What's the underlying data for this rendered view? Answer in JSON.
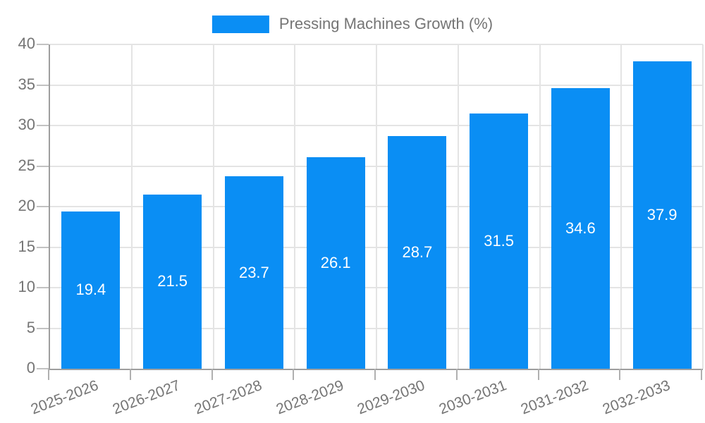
{
  "legend": {
    "label": "Pressing Machines Growth (%)"
  },
  "colors": {
    "bar": "#0a8ef4",
    "data_label": "#ffffff",
    "axis_text": "#757575",
    "gridline": "#e4e4e4",
    "axis_line": "#9e9e9e"
  },
  "chart_data": {
    "type": "bar",
    "title": "",
    "series_name": "Pressing Machines Growth (%)",
    "categories": [
      "2025-2026",
      "2026-2027",
      "2027-2028",
      "2028-2029",
      "2029-2030",
      "2030-2031",
      "2031-2032",
      "2032-2033"
    ],
    "values": [
      19.4,
      21.5,
      23.7,
      26.1,
      28.7,
      31.5,
      34.6,
      37.9
    ],
    "data_labels": [
      "19.4",
      "21.5",
      "23.7",
      "26.1",
      "28.7",
      "31.5",
      "34.6",
      "37.9"
    ],
    "xlabel": "",
    "ylabel": "",
    "ylim": [
      0,
      40
    ],
    "yticks": [
      0,
      5,
      10,
      15,
      20,
      25,
      30,
      35,
      40
    ],
    "grid": true,
    "legend_position": "top-center",
    "x_tick_rotation_deg": -21
  }
}
